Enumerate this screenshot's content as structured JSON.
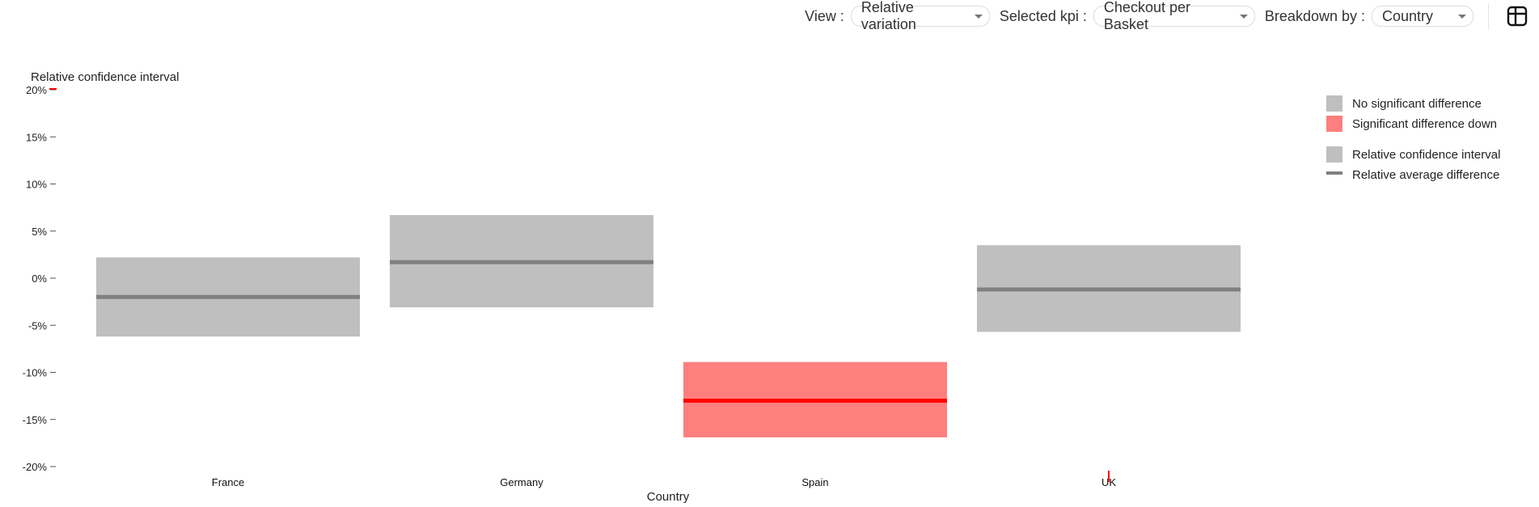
{
  "toolbar": {
    "view_label": "View :",
    "view_value": "Relative variation",
    "kpi_label": "Selected kpi :",
    "kpi_value": "Checkout per Basket",
    "breakdown_label": "Breakdown by :",
    "breakdown_value": "Country",
    "table_icon": "table-icon"
  },
  "chart_data": {
    "type": "bar",
    "title": "",
    "ylabel": "Relative confidence interval",
    "xlabel": "Country",
    "categories": [
      "France",
      "Germany",
      "Spain",
      "UK"
    ],
    "ylim": [
      -20,
      20
    ],
    "yticks": [
      20,
      15,
      10,
      5,
      0,
      -5,
      -10,
      -15,
      -20
    ],
    "ytick_labels": [
      "20%",
      "15%",
      "10%",
      "5%",
      "0%",
      "-5%",
      "-10%",
      "-15%",
      "-20%"
    ],
    "series": [
      {
        "name": "Relative confidence interval",
        "lower": [
          -6.2,
          -3.1,
          -16.9,
          -5.7
        ],
        "upper": [
          2.2,
          6.7,
          -8.9,
          3.5
        ]
      },
      {
        "name": "Relative average difference",
        "values": [
          -2.0,
          1.7,
          -13.0,
          -1.2
        ]
      }
    ],
    "significance": [
      "none",
      "none",
      "down",
      "none"
    ],
    "colors": {
      "none_fill": "#bfbfbf",
      "none_line": "#808080",
      "down_fill": "#ff7f7f",
      "down_line": "#ff0000"
    },
    "legend": {
      "placement": "top-right",
      "items": [
        {
          "label": "No significant difference",
          "kind": "box",
          "color": "#bfbfbf"
        },
        {
          "label": "Significant difference down",
          "kind": "box",
          "color": "#ff7f7f"
        },
        {
          "label": "Relative confidence interval",
          "kind": "box",
          "color": "#bfbfbf"
        },
        {
          "label": "Relative average difference",
          "kind": "line",
          "color": "#808080"
        }
      ]
    },
    "grid": false
  }
}
